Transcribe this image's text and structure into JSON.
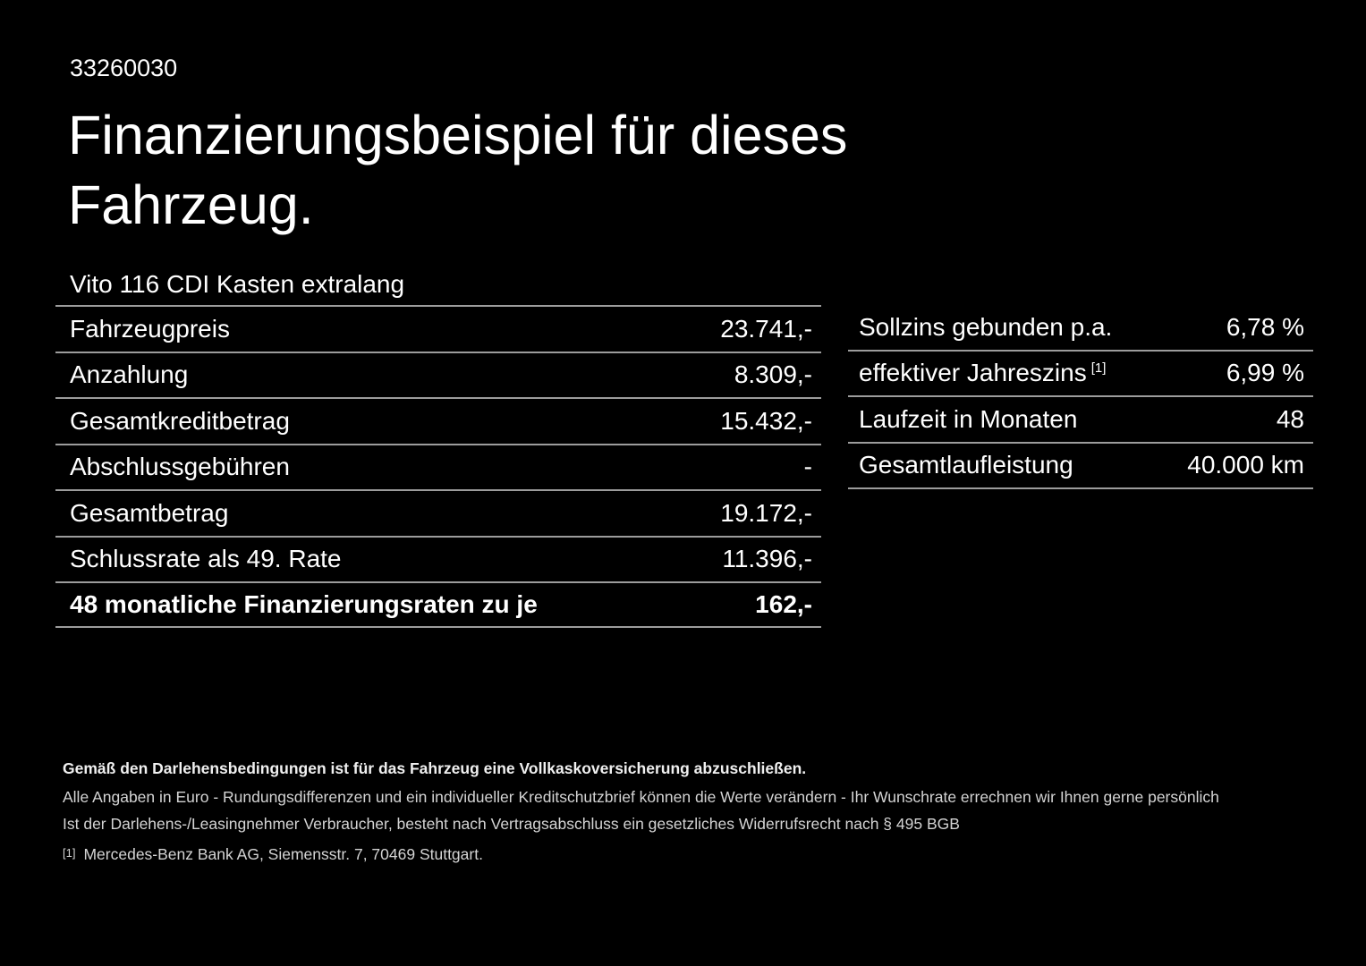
{
  "page": {
    "background": "#000000",
    "text_color": "#ffffff",
    "separator_color": "#9c9c9c"
  },
  "header": {
    "doc_number": "33260030",
    "title_line1": "Finanzierungsbeispiel für dieses",
    "title_line2": "Fahrzeug.",
    "vehicle_model": "Vito 116 CDI Kasten extralang"
  },
  "finance_table": {
    "rows": [
      {
        "label": "Fahrzeugpreis",
        "value": "23.741,-",
        "bold": false
      },
      {
        "label": "Anzahlung",
        "value": "8.309,-",
        "bold": false
      },
      {
        "label": "Gesamtkreditbetrag",
        "value": "15.432,-",
        "bold": false
      },
      {
        "label": "Abschlussgebühren",
        "value": "-",
        "bold": false
      },
      {
        "label": "Gesamtbetrag",
        "value": "19.172,-",
        "bold": false
      },
      {
        "label": "Schlussrate als 49. Rate",
        "value": "11.396,-",
        "bold": false
      },
      {
        "label": "48 monatliche Finanzierungsraten zu je",
        "value": "162,-",
        "bold": true
      }
    ]
  },
  "conditions_table": {
    "rows": [
      {
        "label": "Sollzins gebunden p.a.",
        "superscript": "",
        "value": "6,78 %"
      },
      {
        "label": "effektiver Jahreszins",
        "superscript": "[1]",
        "value": "6,99 %"
      },
      {
        "label": "Laufzeit in Monaten",
        "superscript": "",
        "value": "48"
      },
      {
        "label": "Gesamtlaufleistung",
        "superscript": "",
        "value": "40.000 km"
      }
    ]
  },
  "footnotes": {
    "insurance_note": "Gemäß den Darlehensbedingungen ist für das Fahrzeug eine Vollkaskoversicherung abzuschließen.",
    "disclaimer_line1": "Alle Angaben in Euro - Rundungsdifferenzen und ein individueller Kreditschutzbrief können die Werte verändern - Ihr Wunschrate errechnen wir Ihnen gerne persönlich",
    "disclaimer_line2": "Ist der Darlehens-/Leasingnehmer Verbraucher, besteht nach Vertragsabschluss ein gesetzliches Widerrufsrecht nach § 495 BGB",
    "reference_marker": "[1]",
    "reference_text": "Mercedes-Benz Bank AG, Siemensstr. 7, 70469 Stuttgart."
  }
}
